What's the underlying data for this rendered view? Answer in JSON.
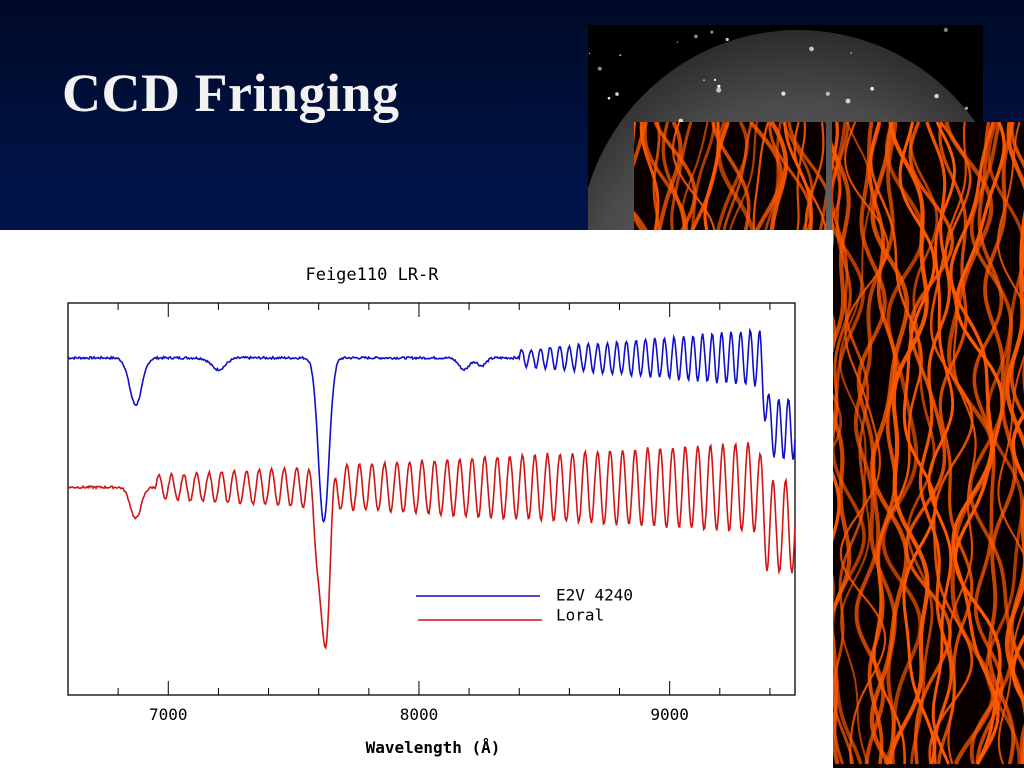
{
  "slide": {
    "title": "CCD Fringing"
  },
  "images": {
    "sky": "ccd-sky-star-field",
    "fringe_left": "fringe-pattern-map-1",
    "fringe_right": "fringe-pattern-map-2"
  },
  "colors": {
    "background_top": "#000a26",
    "background_bottom": "#001a5c",
    "series_blue": "#1010c8",
    "series_red": "#d01515",
    "fringe_orange": "#ff5a00"
  },
  "chart_data": {
    "type": "line",
    "title": "Feige110 LR-R",
    "xlabel": "Wavelength (Å)",
    "ylabel": "",
    "xlim": [
      6600,
      9500
    ],
    "x_ticks": [
      7000,
      8000,
      9000
    ],
    "x_tick_labels": [
      "7000",
      "8000",
      "9000"
    ],
    "grid": false,
    "legend_position": "lower-right",
    "series": [
      {
        "name": "E2V 4240",
        "color": "#1010c8",
        "baseline": 0.86,
        "features": [
          {
            "x": 6870,
            "depth": 0.12,
            "width": 35
          },
          {
            "x": 7200,
            "depth": 0.03,
            "width": 40
          },
          {
            "x": 7620,
            "depth": 0.42,
            "width": 30
          },
          {
            "x": 8180,
            "depth": 0.03,
            "width": 30
          },
          {
            "x": 8250,
            "depth": 0.02,
            "width": 25
          }
        ],
        "fringe_onset": 8400,
        "fringe_period": 38,
        "fringe_amplitude_max": 0.08,
        "end_drop": {
          "x": 9390,
          "depth": 0.18
        }
      },
      {
        "name": "Loral",
        "color": "#d01515",
        "baseline": 0.53,
        "features": [
          {
            "x": 6870,
            "depth": 0.08,
            "width": 30
          },
          {
            "x": 7620,
            "depth": 0.42,
            "width": 28
          }
        ],
        "fringe_onset": 6950,
        "fringe_period": 50,
        "fringe_amplitude_max": 0.12,
        "end_drop": {
          "x": 9380,
          "depth": 0.1
        }
      }
    ]
  }
}
